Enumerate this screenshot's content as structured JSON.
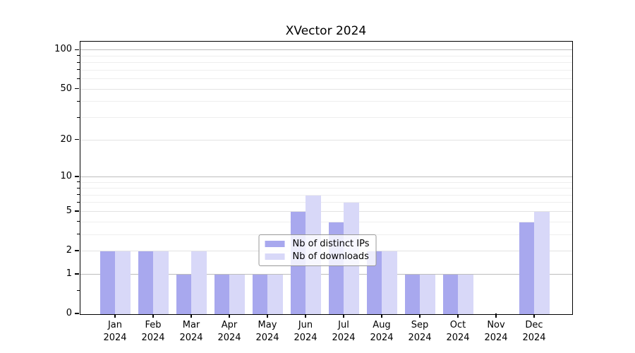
{
  "title": "XVector 2024",
  "legend": {
    "items": [
      {
        "label": "Nb of distinct IPs",
        "color": "#a8a8ee"
      },
      {
        "label": "Nb of downloads",
        "color": "#d8d8f8"
      }
    ],
    "position": "bottom-center"
  },
  "colors": {
    "distinct_ips_bar": "#a8a8ee",
    "downloads_bar": "#d8d8f8"
  },
  "chart_data": {
    "type": "bar",
    "title": "XVector 2024",
    "categories": [
      "Jan 2024",
      "Feb 2024",
      "Mar 2024",
      "Apr 2024",
      "May 2024",
      "Jun 2024",
      "Jul 2024",
      "Aug 2024",
      "Sep 2024",
      "Oct 2024",
      "Nov 2024",
      "Dec 2024"
    ],
    "series": [
      {
        "name": "Nb of distinct IPs",
        "color": "#a8a8ee",
        "values": [
          2,
          2,
          1,
          1,
          1,
          5,
          4,
          2,
          1,
          1,
          0,
          4
        ]
      },
      {
        "name": "Nb of downloads",
        "color": "#d8d8f8",
        "values": [
          2,
          2,
          2,
          1,
          1,
          7,
          6,
          2,
          1,
          1,
          0,
          5
        ]
      }
    ],
    "xlabel": "",
    "ylabel": "",
    "yscale": "log1p",
    "ylim": [
      0,
      115
    ],
    "yticks": [
      0,
      1,
      2,
      5,
      10,
      20,
      50,
      100
    ],
    "power_of_ten_gridlines": [
      1,
      10,
      100
    ],
    "mid_gridlines": [
      2,
      5,
      20,
      50
    ],
    "minor_gridlines": [
      3,
      4,
      6,
      7,
      8,
      9,
      30,
      40,
      60,
      70,
      80,
      90
    ],
    "minor_yticks": [
      0.5,
      3,
      4,
      6,
      7,
      8,
      9,
      30,
      40,
      60,
      70,
      80,
      90
    ],
    "grid": true,
    "legend_position": "bottom center inside"
  }
}
